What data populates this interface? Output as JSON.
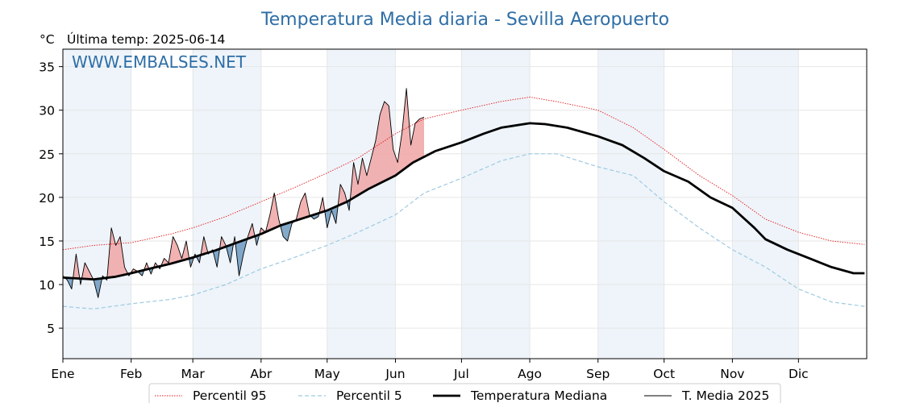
{
  "chart_data": {
    "type": "line",
    "title": "Temperatura Media diaria - Sevilla Aeropuerto",
    "unit_label": "°C",
    "subtitle": "Última temp: 2025-06-14",
    "watermark": "WWW.EMBALSES.NET",
    "ylim": [
      1.5,
      37
    ],
    "yticks": [
      5,
      10,
      15,
      20,
      25,
      30,
      35
    ],
    "x_is_day_of_year": true,
    "month_labels": [
      "Ene",
      "Feb",
      "Mar",
      "Abr",
      "May",
      "Jun",
      "Jul",
      "Ago",
      "Sep",
      "Oct",
      "Nov",
      "Dic"
    ],
    "month_start_days": [
      1,
      32,
      60,
      91,
      121,
      152,
      182,
      213,
      244,
      274,
      305,
      335
    ],
    "grid": true,
    "legend_position": "bottom-center",
    "colors": {
      "p95": "#e31a1c",
      "p5": "#9ecae1",
      "median": "#000000",
      "year": "#000000",
      "above_fill": "#f0a5a5",
      "below_fill": "#5b8db8",
      "shade": "#eef4fa"
    },
    "series": [
      {
        "name": "Percentil 95",
        "style": "dotted-red",
        "x": [
          1,
          15,
          32,
          50,
          60,
          75,
          91,
          105,
          121,
          135,
          152,
          165,
          182,
          200,
          213,
          225,
          244,
          260,
          274,
          290,
          305,
          320,
          335,
          350,
          365
        ],
        "values": [
          14.0,
          14.5,
          14.8,
          15.8,
          16.5,
          17.8,
          19.5,
          21.0,
          22.8,
          24.5,
          27.3,
          29.0,
          30.0,
          31.0,
          31.5,
          31.0,
          30.0,
          28.0,
          25.5,
          22.5,
          20.2,
          17.5,
          16.0,
          15.0,
          14.6
        ]
      },
      {
        "name": "Percentil 5",
        "style": "dashed-lightblue",
        "x": [
          1,
          15,
          32,
          50,
          60,
          75,
          91,
          105,
          121,
          135,
          152,
          165,
          182,
          200,
          213,
          225,
          244,
          260,
          274,
          290,
          305,
          320,
          335,
          350,
          365
        ],
        "values": [
          7.5,
          7.2,
          7.8,
          8.3,
          8.8,
          10.0,
          11.8,
          13.0,
          14.5,
          16.0,
          18.0,
          20.5,
          22.2,
          24.2,
          25.0,
          25.0,
          23.5,
          22.5,
          19.5,
          16.5,
          14.0,
          12.0,
          9.5,
          8.0,
          7.5
        ]
      },
      {
        "name": "Temperatura Mediana",
        "style": "thick-black",
        "x": [
          1,
          15,
          25,
          32,
          40,
          50,
          60,
          70,
          80,
          91,
          100,
          110,
          121,
          130,
          140,
          152,
          160,
          170,
          182,
          192,
          200,
          213,
          220,
          230,
          244,
          255,
          265,
          274,
          285,
          295,
          305,
          315,
          320,
          330,
          340,
          350,
          360,
          365
        ],
        "values": [
          10.8,
          10.6,
          10.9,
          11.3,
          11.8,
          12.4,
          13.1,
          13.9,
          14.8,
          15.8,
          16.8,
          17.6,
          18.5,
          19.5,
          21.0,
          22.5,
          24.0,
          25.3,
          26.3,
          27.3,
          28.0,
          28.5,
          28.4,
          28.0,
          27.0,
          26.0,
          24.5,
          23.0,
          21.8,
          20.0,
          18.8,
          16.5,
          15.2,
          14.0,
          13.0,
          12.0,
          11.3,
          11.3
        ]
      },
      {
        "name": "T. Media 2025",
        "style": "thin-black",
        "x": [
          1,
          3,
          5,
          7,
          9,
          11,
          13,
          15,
          17,
          19,
          21,
          23,
          25,
          27,
          29,
          31,
          33,
          35,
          37,
          39,
          41,
          43,
          45,
          47,
          49,
          51,
          53,
          55,
          57,
          59,
          61,
          63,
          65,
          67,
          69,
          71,
          73,
          75,
          77,
          79,
          81,
          83,
          85,
          87,
          89,
          91,
          93,
          95,
          97,
          99,
          101,
          103,
          105,
          107,
          109,
          111,
          113,
          115,
          117,
          119,
          121,
          123,
          125,
          127,
          129,
          131,
          133,
          135,
          137,
          139,
          141,
          143,
          145,
          147,
          149,
          151,
          153,
          155,
          157,
          159,
          161,
          163,
          165
        ],
        "values": [
          11.0,
          10.5,
          9.5,
          13.5,
          10.0,
          12.5,
          11.5,
          10.5,
          8.5,
          11.0,
          10.5,
          16.5,
          14.5,
          15.5,
          12.0,
          11.0,
          11.8,
          11.5,
          11.0,
          12.5,
          11.2,
          12.5,
          11.8,
          13.0,
          12.5,
          15.5,
          14.5,
          13.0,
          15.0,
          12.0,
          13.5,
          12.5,
          15.5,
          13.5,
          14.0,
          12.0,
          15.5,
          14.5,
          12.5,
          15.5,
          11.0,
          13.5,
          15.5,
          17.0,
          14.5,
          16.5,
          16.0,
          18.0,
          20.5,
          17.5,
          15.5,
          15.0,
          17.0,
          17.5,
          19.5,
          20.5,
          18.0,
          17.5,
          17.8,
          20.0,
          16.5,
          18.5,
          17.0,
          21.5,
          20.5,
          18.5,
          24.0,
          21.5,
          24.5,
          22.5,
          24.5,
          26.5,
          29.5,
          31.0,
          30.5,
          25.5,
          24.0,
          27.5,
          32.5,
          26.0,
          28.5,
          29.0,
          29.2
        ]
      }
    ]
  },
  "legend": [
    {
      "key": "p95",
      "label": "Percentil 95"
    },
    {
      "key": "p5",
      "label": "Percentil 5"
    },
    {
      "key": "median",
      "label": "Temperatura Mediana"
    },
    {
      "key": "year",
      "label": "T. Media 2025"
    }
  ]
}
